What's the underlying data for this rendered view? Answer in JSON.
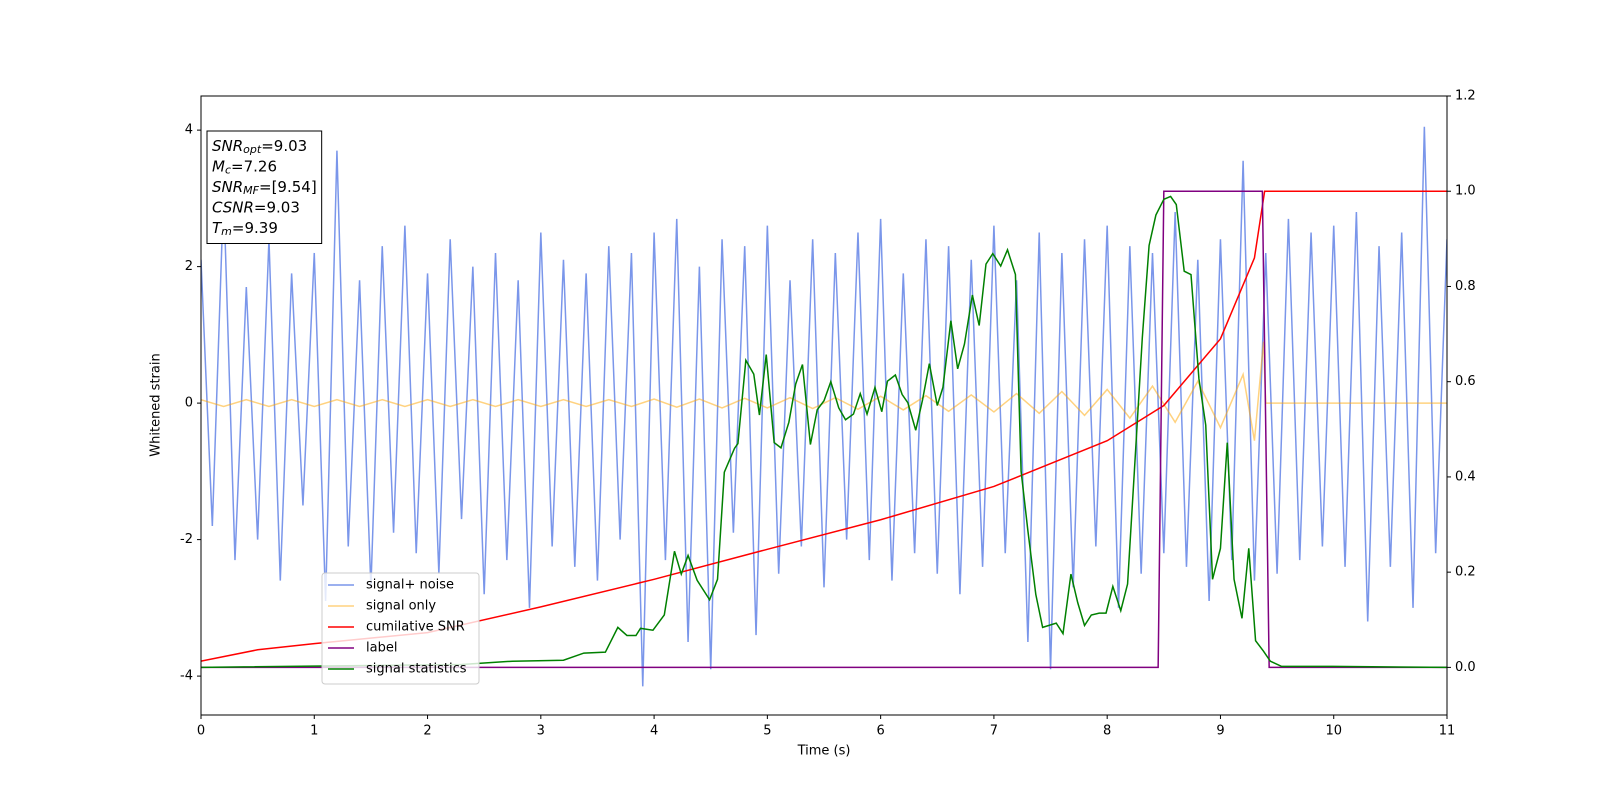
{
  "chart_data": {
    "type": "line",
    "xlabel": "Time (s)",
    "ylabel": "Whitened strain",
    "xlim": [
      0,
      11
    ],
    "ylim": [
      -4.57,
      4.5
    ],
    "y2lim": [
      -0.1,
      1.2
    ],
    "xticks": [
      0,
      1,
      2,
      3,
      4,
      5,
      6,
      7,
      8,
      9,
      10,
      11
    ],
    "yticks": [
      -4,
      -2,
      0,
      2,
      4
    ],
    "y2ticks": [
      {
        "value": 0,
        "label": "0.0"
      },
      0.2,
      0.4,
      0.6,
      0.8,
      {
        "value": 1,
        "label": "1.0"
      },
      1.2
    ],
    "grid": false,
    "legend_loc": "lower left",
    "annotation": [
      {
        "main": "SNR",
        "sub": "opt",
        "text": "=9.03"
      },
      {
        "main": "M",
        "sub": "c",
        "text": "=7.26"
      },
      {
        "main": "SNR",
        "sub": "MF",
        "text": "=[9.54]"
      },
      {
        "main": "CSNR",
        "text": "=9.03"
      },
      {
        "main": "T",
        "sub": "m",
        "text": "=9.39"
      }
    ],
    "series": [
      {
        "name": "signal+ noise",
        "color": "#4169e1",
        "alpha": 0.7,
        "x": [
          0,
          0.1,
          0.2,
          0.3,
          0.4,
          0.5,
          0.6,
          0.7,
          0.8,
          0.9,
          1,
          1.1,
          1.2,
          1.3,
          1.4,
          1.5,
          1.6,
          1.7,
          1.8,
          1.9,
          2,
          2.1,
          2.2,
          2.3,
          2.4,
          2.5,
          2.6,
          2.7,
          2.8,
          2.9,
          3,
          3.1,
          3.2,
          3.3,
          3.4,
          3.5,
          3.6,
          3.7,
          3.8,
          3.9,
          4,
          4.1,
          4.2,
          4.3,
          4.4,
          4.5,
          4.6,
          4.7,
          4.8,
          4.9,
          5,
          5.1,
          5.2,
          5.3,
          5.4,
          5.5,
          5.6,
          5.7,
          5.8,
          5.9,
          6,
          6.1,
          6.2,
          6.3,
          6.4,
          6.5,
          6.6,
          6.7,
          6.8,
          6.9,
          7,
          7.1,
          7.2,
          7.3,
          7.4,
          7.5,
          7.6,
          7.7,
          7.8,
          7.9,
          8,
          8.1,
          8.2,
          8.3,
          8.4,
          8.5,
          8.6,
          8.7,
          8.8,
          8.9,
          9,
          9.1,
          9.2,
          9.3,
          9.4,
          9.5,
          9.6,
          9.7,
          9.8,
          9.9,
          10,
          10.1,
          10.2,
          10.3,
          10.4,
          10.5,
          10.6,
          10.7,
          10.8,
          10.9,
          11
        ],
        "values": [
          2.1,
          -1.8,
          3.1,
          -2.3,
          1.7,
          -2.0,
          2.4,
          -2.6,
          1.9,
          -1.5,
          2.2,
          -2.9,
          3.7,
          -2.1,
          1.8,
          -2.7,
          2.3,
          -1.9,
          2.6,
          -2.2,
          1.9,
          -2.5,
          2.4,
          -1.7,
          2.0,
          -2.8,
          2.2,
          -2.3,
          1.8,
          -3.0,
          2.5,
          -2.1,
          2.1,
          -2.4,
          1.9,
          -2.6,
          2.3,
          -2.0,
          2.2,
          -4.15,
          2.5,
          -2.3,
          2.7,
          -3.5,
          2.0,
          -3.9,
          2.4,
          -1.9,
          2.3,
          -3.4,
          2.6,
          -2.5,
          1.8,
          -2.1,
          2.4,
          -2.7,
          2.2,
          -2.0,
          2.5,
          -2.3,
          2.7,
          -2.6,
          1.9,
          -2.2,
          2.4,
          -2.5,
          2.3,
          -2.8,
          2.1,
          -2.4,
          2.6,
          -2.2,
          1.8,
          -3.5,
          2.5,
          -3.9,
          2.2,
          -2.7,
          2.4,
          -2.1,
          2.6,
          -3.0,
          2.3,
          -2.5,
          2.2,
          -2.2,
          2.8,
          -2.4,
          2.1,
          -2.9,
          2.4,
          -2.3,
          3.55,
          -2.6,
          2.2,
          -2.5,
          2.7,
          -2.3,
          2.5,
          -2.1,
          2.6,
          -2.4,
          2.8,
          -3.2,
          2.3,
          -2.4,
          2.5,
          -3.0,
          4.05,
          -2.2,
          2.4
        ]
      },
      {
        "name": "signal only",
        "color": "#ffa500",
        "alpha": 0.5,
        "x": [
          0,
          0.2,
          0.4,
          0.6,
          0.8,
          1,
          1.2,
          1.4,
          1.6,
          1.8,
          2,
          2.2,
          2.4,
          2.6,
          2.8,
          3,
          3.2,
          3.4,
          3.6,
          3.8,
          4,
          4.2,
          4.4,
          4.6,
          4.8,
          5,
          5.2,
          5.4,
          5.6,
          5.8,
          6,
          6.2,
          6.4,
          6.6,
          6.8,
          7,
          7.2,
          7.4,
          7.6,
          7.8,
          8,
          8.2,
          8.4,
          8.6,
          8.8,
          9,
          9.2,
          9.3,
          9.38,
          9.4,
          11
        ],
        "values": [
          0.05,
          -0.05,
          0.05,
          -0.05,
          0.05,
          -0.05,
          0.05,
          -0.05,
          0.05,
          -0.05,
          0.05,
          -0.05,
          0.05,
          -0.05,
          0.05,
          -0.05,
          0.05,
          -0.05,
          0.05,
          -0.05,
          0.06,
          -0.06,
          0.06,
          -0.07,
          0.07,
          -0.07,
          0.08,
          -0.08,
          0.08,
          -0.09,
          0.1,
          -0.1,
          0.11,
          -0.12,
          0.12,
          -0.13,
          0.14,
          -0.15,
          0.17,
          -0.18,
          0.2,
          -0.22,
          0.25,
          -0.28,
          0.32,
          -0.36,
          0.42,
          -0.55,
          0.9,
          0,
          0
        ]
      },
      {
        "name": "cumilative SNR",
        "color": "#ff0000",
        "axis": "y2",
        "x": [
          0,
          0.5,
          1,
          2,
          3,
          4,
          5,
          6,
          7,
          8,
          8.5,
          9,
          9.3,
          9.39,
          11
        ],
        "values": [
          0.013,
          0.037,
          0.05,
          0.073,
          0.127,
          0.185,
          0.248,
          0.31,
          0.38,
          0.476,
          0.55,
          0.69,
          0.86,
          1.0,
          1.0
        ]
      },
      {
        "name": "label",
        "color": "#800080",
        "axis": "y2",
        "x": [
          0,
          8.45,
          8.5,
          9.37,
          9.43,
          11
        ],
        "values": [
          0,
          0,
          1,
          1,
          0,
          0
        ]
      },
      {
        "name": "signal statistics",
        "color": "#008000",
        "axis": "y2",
        "x": [
          0,
          2.3,
          2.75,
          3.2,
          3.38,
          3.57,
          3.68,
          3.76,
          3.84,
          3.88,
          3.99,
          4.09,
          4.18,
          4.24,
          4.3,
          4.38,
          4.49,
          4.56,
          4.62,
          4.71,
          4.74,
          4.81,
          4.88,
          4.93,
          4.99,
          5.06,
          5.12,
          5.19,
          5.25,
          5.31,
          5.38,
          5.44,
          5.5,
          5.56,
          5.63,
          5.69,
          5.76,
          5.82,
          5.88,
          5.95,
          6.01,
          6.06,
          6.13,
          6.19,
          6.24,
          6.31,
          6.37,
          6.43,
          6.5,
          6.55,
          6.62,
          6.68,
          6.74,
          6.81,
          6.87,
          6.93,
          6.99,
          7.06,
          7.12,
          7.19,
          7.24,
          7.3,
          7.37,
          7.43,
          7.55,
          7.61,
          7.68,
          7.74,
          7.8,
          7.86,
          7.93,
          7.99,
          8.05,
          8.12,
          8.18,
          8.24,
          8.31,
          8.37,
          8.43,
          8.5,
          8.56,
          8.61,
          8.68,
          8.74,
          8.81,
          8.87,
          8.93,
          9.0,
          9.06,
          9.12,
          9.19,
          9.25,
          9.31,
          9.38,
          9.44,
          9.54,
          9.99,
          11
        ],
        "values": [
          0.0,
          0.006,
          0.013,
          0.015,
          0.03,
          0.032,
          0.084,
          0.067,
          0.067,
          0.082,
          0.078,
          0.11,
          0.244,
          0.196,
          0.235,
          0.183,
          0.142,
          0.185,
          0.41,
          0.46,
          0.47,
          0.645,
          0.616,
          0.53,
          0.657,
          0.472,
          0.461,
          0.515,
          0.595,
          0.636,
          0.468,
          0.541,
          0.56,
          0.6,
          0.545,
          0.52,
          0.532,
          0.575,
          0.532,
          0.588,
          0.537,
          0.601,
          0.614,
          0.573,
          0.556,
          0.498,
          0.562,
          0.638,
          0.55,
          0.588,
          0.728,
          0.627,
          0.679,
          0.782,
          0.718,
          0.847,
          0.869,
          0.843,
          0.877,
          0.825,
          0.412,
          0.287,
          0.153,
          0.084,
          0.093,
          0.071,
          0.196,
          0.136,
          0.088,
          0.11,
          0.114,
          0.114,
          0.17,
          0.119,
          0.175,
          0.412,
          0.692,
          0.886,
          0.95,
          0.983,
          0.989,
          0.972,
          0.832,
          0.825,
          0.606,
          0.509,
          0.185,
          0.25,
          0.472,
          0.185,
          0.103,
          0.25,
          0.056,
          0.034,
          0.013,
          0.002,
          0.002,
          0.0
        ]
      }
    ]
  }
}
